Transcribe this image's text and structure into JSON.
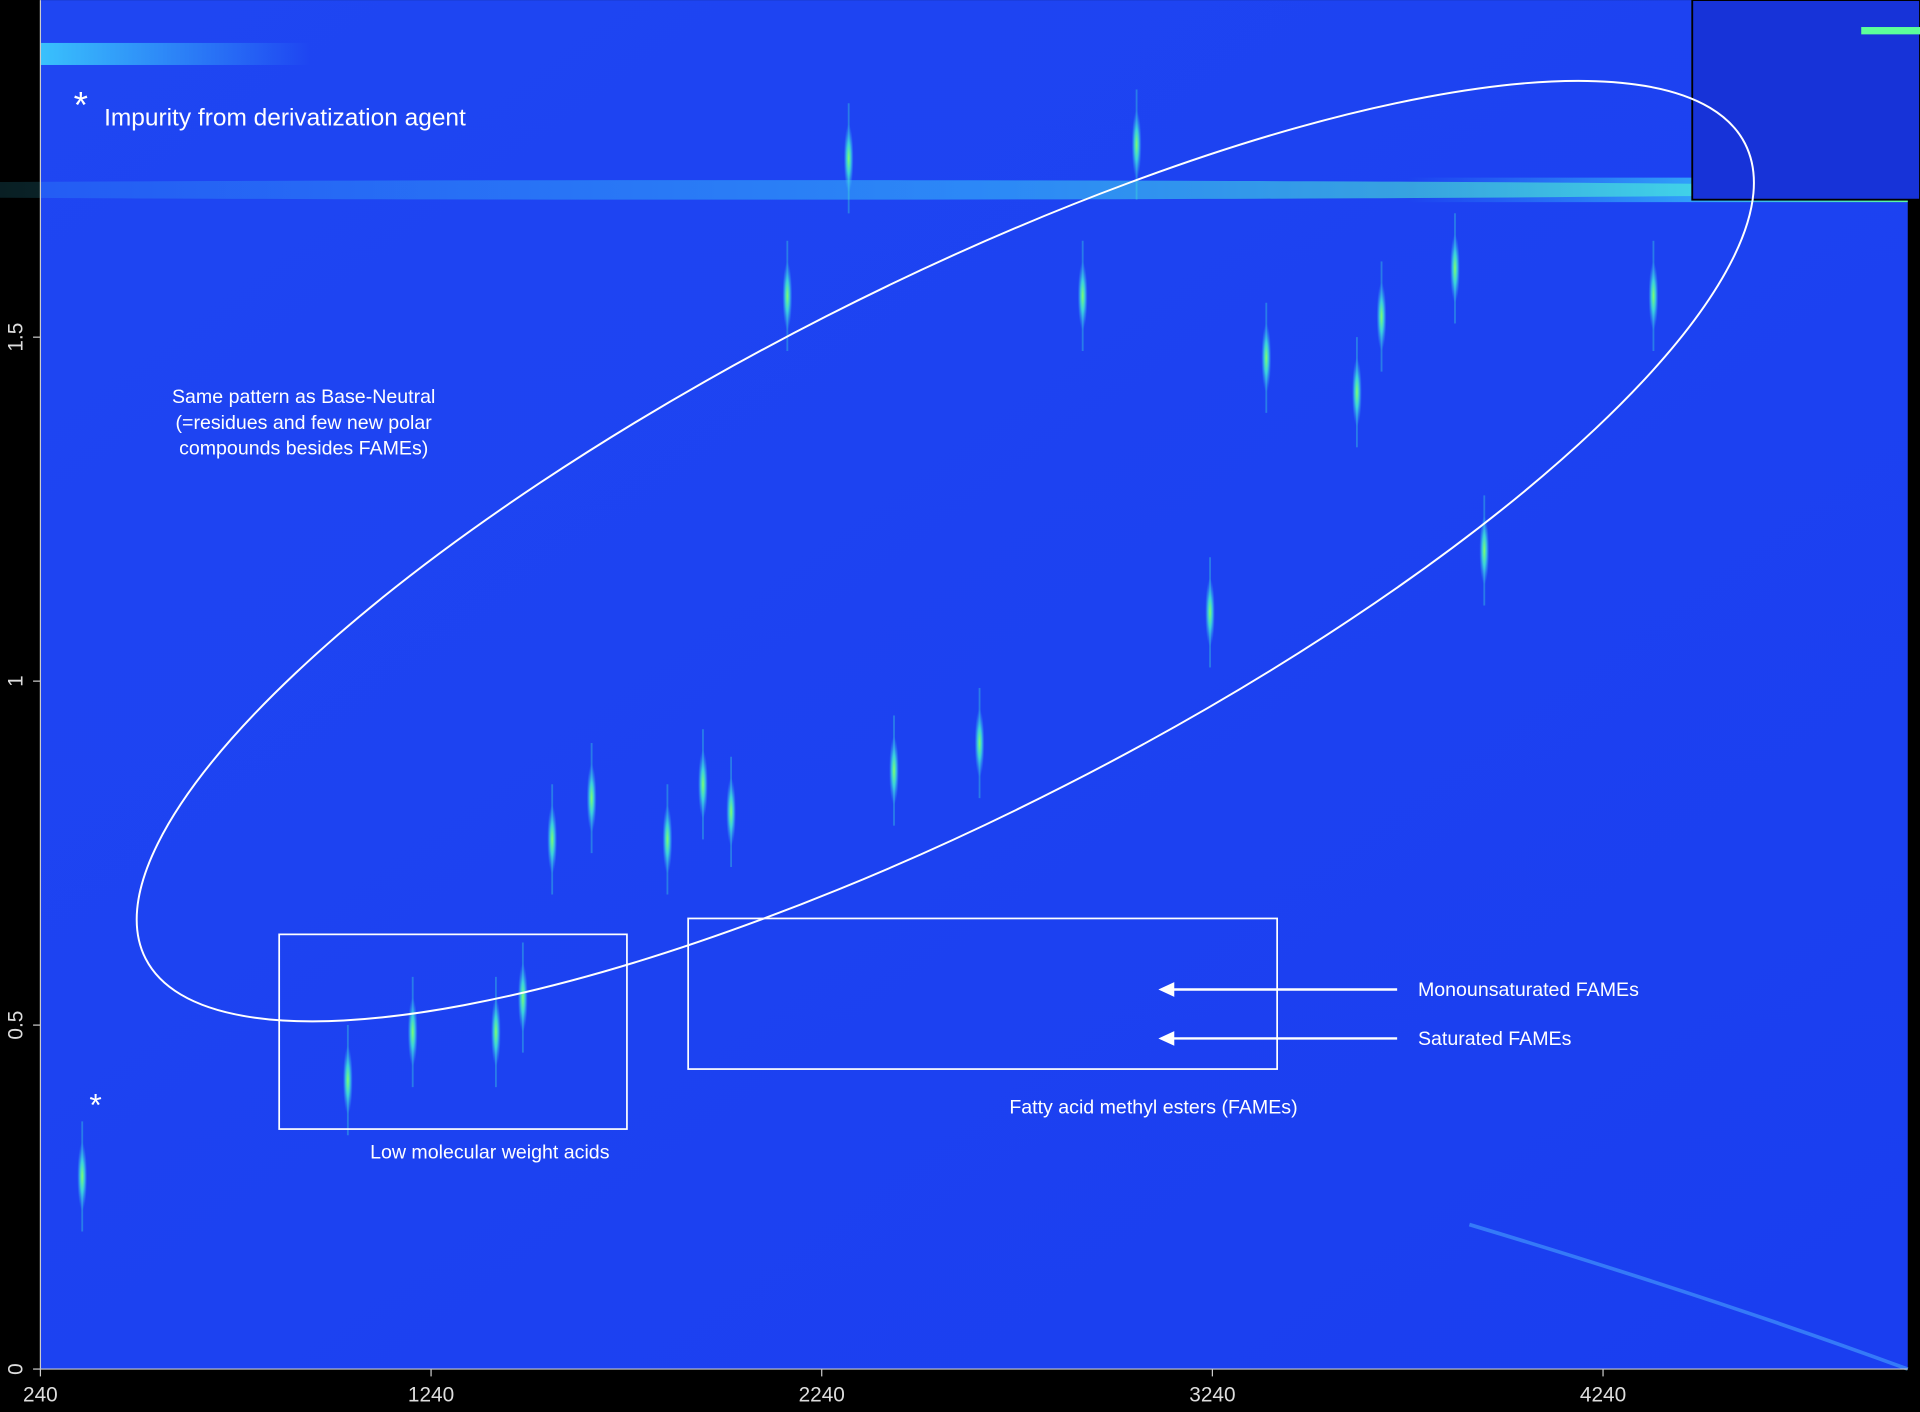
{
  "chart_data": {
    "type": "scatter",
    "xlim": [
      240,
      5020
    ],
    "ylim": [
      0,
      1.99
    ],
    "xticks": [
      240,
      1240,
      2240,
      3240,
      4240
    ],
    "yticks": [
      0,
      0.5,
      1,
      1.5
    ],
    "x": [
      347,
      1027,
      1193,
      1406,
      1475,
      1550,
      1651,
      1845,
      1936,
      2008,
      2152,
      2309,
      2425,
      2644,
      2908,
      3046,
      3234,
      3378,
      3610,
      3673,
      3861,
      3936,
      4369
    ],
    "values": [
      0.28,
      0.42,
      0.49,
      0.49,
      0.54,
      0.77,
      0.83,
      0.77,
      0.85,
      0.81,
      1.56,
      1.76,
      0.87,
      0.91,
      1.56,
      1.78,
      1.1,
      1.47,
      1.42,
      1.53,
      1.6,
      1.19,
      1.56
    ],
    "color": "#3fe8d8",
    "impurity_marker": "*",
    "impurity_note": "Impurity from derivatization agent",
    "ellipse_note": [
      "Same pattern as Base-Neutral",
      "(=residues and few new polar",
      "compounds besides FAMEs)"
    ],
    "box_labels": [
      "Low molecular weight acids",
      "Fatty acid methyl esters (FAMEs)"
    ],
    "arrow_labels": [
      "Monounsaturated FAMEs",
      "Saturated FAMEs"
    ],
    "peak_marker": "*"
  }
}
